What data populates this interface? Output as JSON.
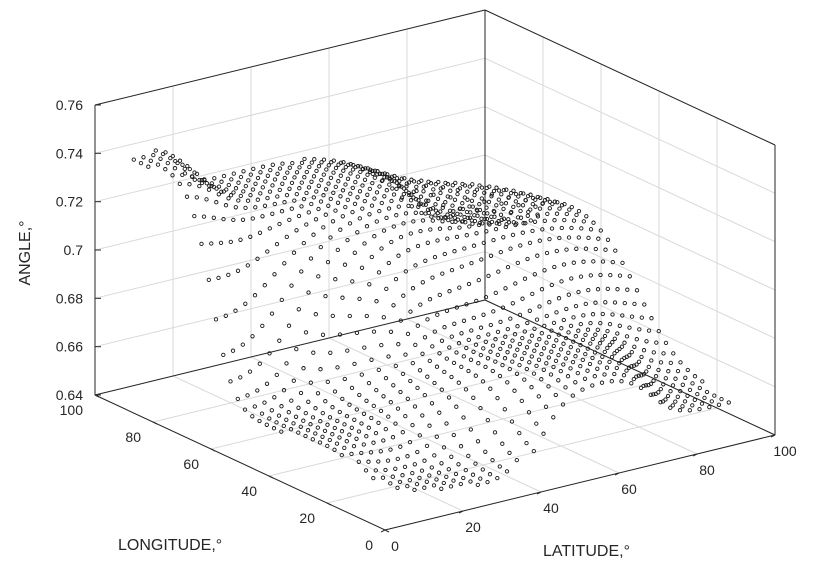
{
  "chart_data": {
    "type": "scatter",
    "subtype": "3d",
    "title": "",
    "xlabel": "LATITUDE,°",
    "ylabel": "LONGITUDE,°",
    "zlabel": "ANGLE,°",
    "xlim": [
      0,
      100
    ],
    "ylim": [
      0,
      100
    ],
    "zlim": [
      0.64,
      0.76
    ],
    "x_ticks": [
      "0",
      "20",
      "40",
      "60",
      "80",
      "100"
    ],
    "y_ticks": [
      "0",
      "20",
      "40",
      "60",
      "80",
      "100"
    ],
    "z_ticks": [
      "0.64",
      "0.66",
      "0.68",
      "0.7",
      "0.72",
      "0.74",
      "0.76"
    ],
    "grid": true,
    "marker": "open-circle",
    "marker_color": "#1a1a1a",
    "grid_spacing": 2.5,
    "domain_polygon": [
      [
        2,
        92
      ],
      [
        5,
        42
      ],
      [
        8,
        20
      ],
      [
        13,
        11
      ],
      [
        22,
        6
      ],
      [
        35,
        3
      ],
      [
        55,
        1
      ],
      [
        92,
        1
      ],
      [
        96,
        98
      ]
    ],
    "surface_samples": [
      {
        "latitude": 2,
        "longitude": 92,
        "angle": 0.742
      },
      {
        "latitude": 30,
        "longitude": 92,
        "angle": 0.724
      },
      {
        "latitude": 50,
        "longitude": 75,
        "angle": 0.721
      },
      {
        "latitude": 70,
        "longitude": 70,
        "angle": 0.71
      },
      {
        "latitude": 96,
        "longitude": 95,
        "angle": 0.682
      },
      {
        "latitude": 92,
        "longitude": 1,
        "angle": 0.656
      },
      {
        "latitude": 55,
        "longitude": 20,
        "angle": 0.68
      },
      {
        "latitude": 5,
        "longitude": 42,
        "angle": 0.655
      },
      {
        "latitude": 22,
        "longitude": 6,
        "angle": 0.645
      }
    ]
  }
}
